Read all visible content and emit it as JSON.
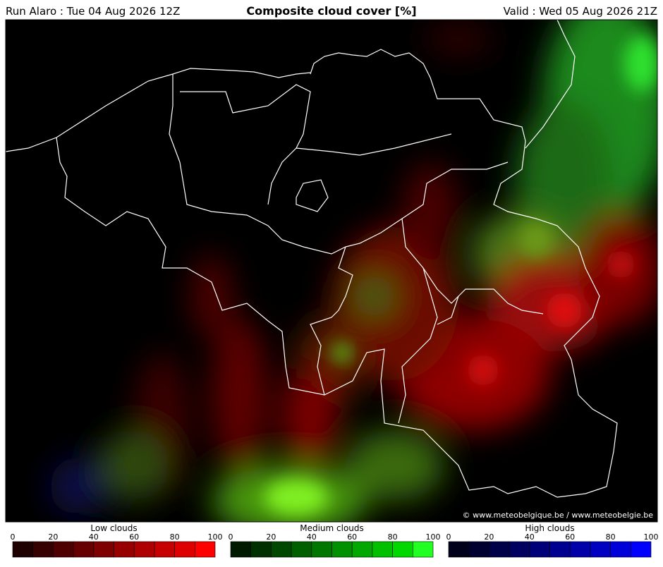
{
  "header": {
    "run": "Run Alaro : Tue 04 Aug 2026 12Z",
    "title": "Composite cloud cover [%]",
    "valid": "Valid : Wed 05 Aug 2026 21Z"
  },
  "copyright": "© www.meteobelgique.be / www.meteobelgie.be",
  "legends": [
    {
      "title": "Low clouds",
      "ticks": [
        0,
        20,
        40,
        60,
        80,
        100
      ],
      "colors": [
        "#1e0000",
        "#360000",
        "#4e0000",
        "#660000",
        "#7e0000",
        "#960000",
        "#ae0000",
        "#c60000",
        "#de0000",
        "#ff0000"
      ]
    },
    {
      "title": "Medium clouds",
      "ticks": [
        0,
        20,
        40,
        60,
        80,
        100
      ],
      "colors": [
        "#001a00",
        "#003000",
        "#004800",
        "#006000",
        "#007800",
        "#009000",
        "#00a800",
        "#00c000",
        "#00d800",
        "#22ff22"
      ]
    },
    {
      "title": "High clouds",
      "ticks": [
        0,
        20,
        40,
        60,
        80,
        100
      ],
      "colors": [
        "#00001a",
        "#000030",
        "#000048",
        "#000060",
        "#000078",
        "#000090",
        "#0000a8",
        "#0000c0",
        "#0000d8",
        "#0000ff"
      ]
    }
  ]
}
